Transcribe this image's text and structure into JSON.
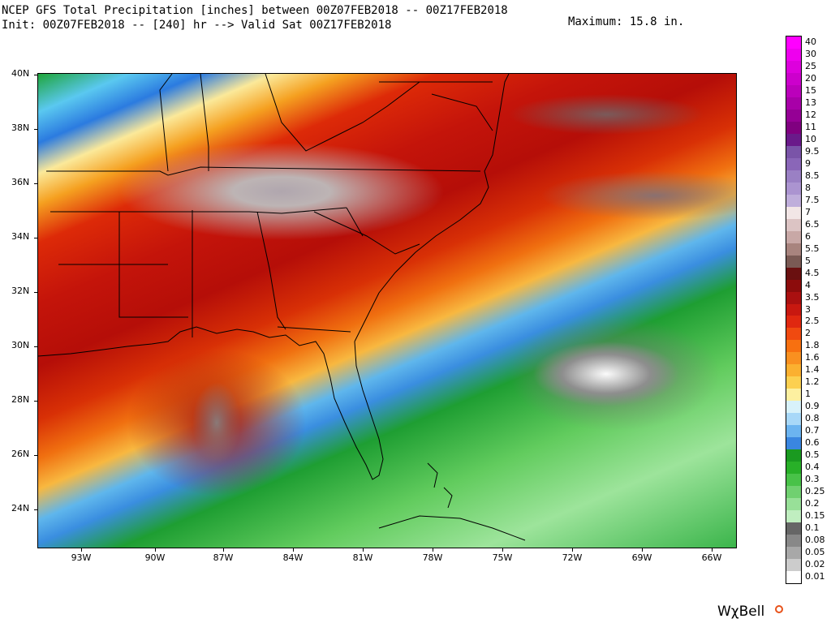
{
  "header": {
    "title_line1": "NCEP GFS Total Precipitation [inches] between 00Z07FEB2018 -- 00Z17FEB2018",
    "title_line2": "Init: 00Z07FEB2018 -- [240] hr --> Valid Sat 00Z17FEB2018",
    "maximum_label": "Maximum: 15.8 in."
  },
  "map": {
    "lat_labels": [
      "40N",
      "38N",
      "36N",
      "34N",
      "32N",
      "30N",
      "28N",
      "26N",
      "24N"
    ],
    "lon_labels": [
      "93W",
      "90W",
      "87W",
      "84W",
      "81W",
      "78W",
      "75W",
      "72W",
      "69W",
      "66W"
    ]
  },
  "colorbar": {
    "levels": [
      {
        "label": "40",
        "color": "#ff00ff"
      },
      {
        "label": "30",
        "color": "#ee00ee"
      },
      {
        "label": "25",
        "color": "#dd00dd"
      },
      {
        "label": "20",
        "color": "#cc00cc"
      },
      {
        "label": "15",
        "color": "#bb00bb"
      },
      {
        "label": "13",
        "color": "#a800a8"
      },
      {
        "label": "12",
        "color": "#950095"
      },
      {
        "label": "11",
        "color": "#800080"
      },
      {
        "label": "10",
        "color": "#6a1a8a"
      },
      {
        "label": "9.5",
        "color": "#7a54a8"
      },
      {
        "label": "9",
        "color": "#8a66b8"
      },
      {
        "label": "8.5",
        "color": "#9a80c4"
      },
      {
        "label": "8",
        "color": "#ab94d0"
      },
      {
        "label": "7.5",
        "color": "#bfaedb"
      },
      {
        "label": "7",
        "color": "#f2e6e6"
      },
      {
        "label": "6.5",
        "color": "#dcc4c4"
      },
      {
        "label": "6",
        "color": "#c8a8a6"
      },
      {
        "label": "5.5",
        "color": "#a8847e"
      },
      {
        "label": "5",
        "color": "#7a5a54"
      },
      {
        "label": "4.5",
        "color": "#6a1010"
      },
      {
        "label": "4",
        "color": "#8c0c0c"
      },
      {
        "label": "3.5",
        "color": "#aa1010"
      },
      {
        "label": "3",
        "color": "#c81810"
      },
      {
        "label": "2.5",
        "color": "#e02810"
      },
      {
        "label": "2",
        "color": "#f04a10"
      },
      {
        "label": "1.8",
        "color": "#f77010"
      },
      {
        "label": "1.6",
        "color": "#f99020"
      },
      {
        "label": "1.4",
        "color": "#fbb030"
      },
      {
        "label": "1.2",
        "color": "#fcd050"
      },
      {
        "label": "1",
        "color": "#fdf0a0"
      },
      {
        "label": "0.9",
        "color": "#d8f2fa"
      },
      {
        "label": "0.8",
        "color": "#a8d8f8"
      },
      {
        "label": "0.7",
        "color": "#6cb4f0"
      },
      {
        "label": "0.6",
        "color": "#3a86e0"
      },
      {
        "label": "0.5",
        "color": "#1a9a20"
      },
      {
        "label": "0.4",
        "color": "#28b028"
      },
      {
        "label": "0.3",
        "color": "#48c248"
      },
      {
        "label": "0.25",
        "color": "#70d070"
      },
      {
        "label": "0.2",
        "color": "#98e098"
      },
      {
        "label": "0.15",
        "color": "#c0eec0"
      },
      {
        "label": "0.1",
        "color": "#666666"
      },
      {
        "label": "0.08",
        "color": "#888888"
      },
      {
        "label": "0.05",
        "color": "#a8a8a8"
      },
      {
        "label": "0.02",
        "color": "#cccccc"
      },
      {
        "label": "0.01",
        "color": "#ffffff"
      }
    ]
  },
  "logo": {
    "text": "WχBell"
  }
}
